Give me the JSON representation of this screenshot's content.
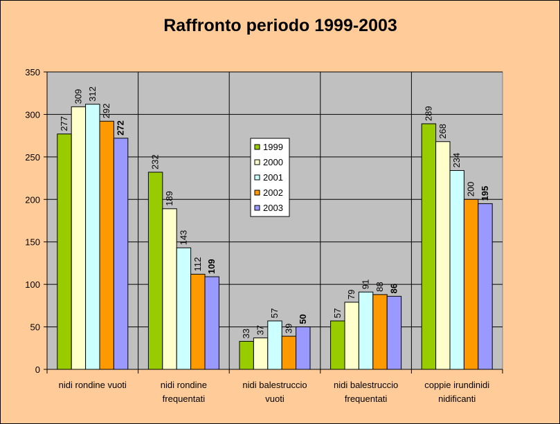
{
  "chart_data": {
    "type": "bar",
    "title": "Raffronto periodo 1999-2003",
    "xlabel": "",
    "ylabel": "",
    "ylim": [
      0,
      350
    ],
    "yticks": [
      "0",
      "50",
      "100",
      "150",
      "200",
      "250",
      "300",
      "350"
    ],
    "grid": true,
    "legend_position": "center",
    "categories": [
      [
        "nidi rondine vuoti"
      ],
      [
        "nidi rondine",
        "frequentati"
      ],
      [
        "nidi balestruccio",
        "vuoti"
      ],
      [
        "nidi balestruccio",
        "frequentati"
      ],
      [
        "coppie irundinidi",
        "nidificanti"
      ]
    ],
    "series": [
      {
        "name": "1999",
        "color": "#99cc00",
        "values": [
          277,
          232,
          33,
          57,
          289
        ]
      },
      {
        "name": "2000",
        "color": "#ffffcc",
        "values": [
          309,
          189,
          37,
          79,
          268
        ]
      },
      {
        "name": "2001",
        "color": "#ccffff",
        "values": [
          312,
          143,
          57,
          91,
          234
        ]
      },
      {
        "name": "2002",
        "color": "#ff9900",
        "values": [
          292,
          112,
          39,
          88,
          200
        ]
      },
      {
        "name": "2003",
        "color": "#9999ff",
        "values": [
          272,
          109,
          50,
          86,
          195
        ],
        "bold_labels": true
      }
    ],
    "plot_background": "#c0c0c0",
    "chart_background": "#ffcc99"
  }
}
